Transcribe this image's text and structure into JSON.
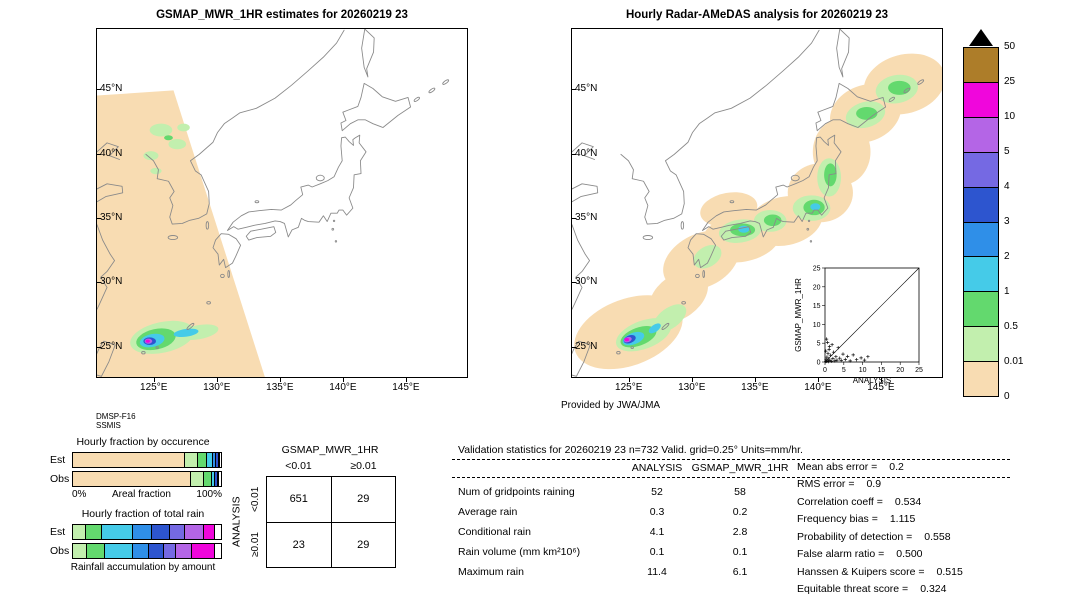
{
  "geo_labels": {
    "lat": [
      "45°N",
      "40°N",
      "35°N",
      "30°N",
      "25°N"
    ],
    "lat_vals": [
      45,
      40,
      35,
      30,
      25
    ],
    "lon": [
      "125°E",
      "130°E",
      "135°E",
      "140°E",
      "145°E"
    ],
    "lon_vals": [
      125,
      130,
      135,
      140,
      145
    ]
  },
  "colorbar": {
    "labels": [
      "50",
      "25",
      "10",
      "5",
      "4",
      "3",
      "2",
      "1",
      "0.5",
      "0.01",
      "0"
    ],
    "colors": [
      "#ad7d29",
      "#f006dc",
      "#b465e6",
      "#7569e3",
      "#2d55cf",
      "#2f8fe8",
      "#45cbe8",
      "#63d96e",
      "#c2efae",
      "#f8dcb2"
    ],
    "overflow_color": "#000000"
  },
  "chart_data": [
    {
      "type": "map",
      "title": "GSMAP_MWR_1HR estimates for 20260219 23",
      "source_lines": [
        "DMSP-F16",
        "SSMIS"
      ],
      "extent": {
        "lon": [
          120.5,
          150.0
        ],
        "lat": [
          22.5,
          49.7
        ]
      },
      "units": "mm/hr",
      "blobs": [
        {
          "poly": [
            [
              120.5,
              44.5
            ],
            [
              126.6,
              44.9
            ],
            [
              134.6,
              20.3
            ],
            [
              120.5,
              20.3
            ]
          ],
          "c": 9
        },
        {
          "e": [
            125.6,
            41.8,
            0.9,
            0.5,
            0
          ],
          "c": 8
        },
        {
          "e": [
            126.9,
            40.7,
            0.7,
            0.4,
            0
          ],
          "c": 8
        },
        {
          "e": [
            124.8,
            39.8,
            0.6,
            0.35,
            0
          ],
          "c": 8
        },
        {
          "e": [
            125.2,
            38.6,
            0.45,
            0.25,
            0
          ],
          "c": 8
        },
        {
          "e": [
            127.4,
            42.0,
            0.5,
            0.3,
            0
          ],
          "c": 8
        },
        {
          "e": [
            126.2,
            41.2,
            0.35,
            0.2,
            0
          ],
          "c": 7
        },
        {
          "e": [
            125.7,
            25.6,
            2.6,
            1.2,
            -12
          ],
          "c": 8
        },
        {
          "e": [
            128.6,
            26.0,
            1.6,
            0.55,
            -10
          ],
          "c": 8
        },
        {
          "e": [
            125.2,
            25.45,
            1.6,
            0.8,
            -12
          ],
          "c": 7
        },
        {
          "e": [
            124.9,
            25.35,
            1.0,
            0.5,
            -12
          ],
          "c": 6
        },
        {
          "e": [
            127.6,
            25.95,
            1.0,
            0.3,
            -8
          ],
          "c": 6
        },
        {
          "e": [
            124.7,
            25.3,
            0.5,
            0.3,
            0
          ],
          "c": 4
        },
        {
          "e": [
            124.6,
            25.3,
            0.3,
            0.2,
            0
          ],
          "c": 2
        },
        {
          "e": [
            124.55,
            25.3,
            0.17,
            0.12,
            0
          ],
          "c": 1
        }
      ]
    },
    {
      "type": "map",
      "title": "Hourly Radar-AMeDAS analysis for 20260219 23",
      "credit": "Provided by JWA/JMA",
      "extent": {
        "lon": [
          120.5,
          150.0
        ],
        "lat": [
          22.5,
          49.7
        ]
      },
      "units": "mm/hr",
      "blobs": [
        {
          "e": [
            125.0,
            26.0,
            4.5,
            2.6,
            -20
          ],
          "c": 9
        },
        {
          "e": [
            129.0,
            28.8,
            2.6,
            1.7,
            -35
          ],
          "c": 9
        },
        {
          "e": [
            130.8,
            31.6,
            3.2,
            2.1,
            -25
          ],
          "c": 9
        },
        {
          "e": [
            134.0,
            33.4,
            3.2,
            1.9,
            -10
          ],
          "c": 9
        },
        {
          "e": [
            137.5,
            34.7,
            3.0,
            1.9,
            -12
          ],
          "c": 9
        },
        {
          "e": [
            140.3,
            36.9,
            2.6,
            2.3,
            0
          ],
          "c": 9
        },
        {
          "e": [
            142.0,
            40.1,
            2.3,
            2.6,
            0
          ],
          "c": 9
        },
        {
          "e": [
            143.9,
            43.1,
            2.9,
            2.2,
            -20
          ],
          "c": 9
        },
        {
          "e": [
            147.0,
            45.4,
            3.3,
            2.3,
            -15
          ],
          "c": 9
        },
        {
          "e": [
            133.0,
            35.6,
            2.3,
            1.3,
            -10
          ],
          "c": 9
        },
        {
          "e": [
            126.2,
            25.8,
            2.3,
            1.1,
            -20
          ],
          "c": 8
        },
        {
          "e": [
            128.3,
            27.1,
            1.5,
            0.8,
            -35
          ],
          "c": 8
        },
        {
          "e": [
            131.3,
            31.9,
            1.2,
            0.8,
            -30
          ],
          "c": 8
        },
        {
          "e": [
            133.9,
            33.9,
            1.7,
            0.9,
            -8
          ],
          "c": 8
        },
        {
          "e": [
            136.3,
            34.7,
            1.3,
            0.85,
            0
          ],
          "c": 8
        },
        {
          "e": [
            139.6,
            35.7,
            1.5,
            1.0,
            0
          ],
          "c": 8
        },
        {
          "e": [
            141.0,
            38.1,
            0.95,
            1.5,
            0
          ],
          "c": 8
        },
        {
          "e": [
            143.9,
            43.0,
            1.6,
            1.0,
            -15
          ],
          "c": 8
        },
        {
          "e": [
            146.4,
            45.0,
            1.7,
            1.1,
            -10
          ],
          "c": 8
        },
        {
          "e": [
            125.8,
            25.65,
            1.5,
            0.7,
            -20
          ],
          "c": 7
        },
        {
          "e": [
            134.1,
            34.0,
            1.0,
            0.5,
            0
          ],
          "c": 7
        },
        {
          "e": [
            136.5,
            34.75,
            0.7,
            0.45,
            0
          ],
          "c": 7
        },
        {
          "e": [
            139.8,
            35.75,
            0.85,
            0.6,
            0
          ],
          "c": 7
        },
        {
          "e": [
            141.1,
            38.3,
            0.5,
            0.9,
            0
          ],
          "c": 7
        },
        {
          "e": [
            144.0,
            43.1,
            0.85,
            0.5,
            0
          ],
          "c": 7
        },
        {
          "e": [
            146.6,
            45.1,
            0.9,
            0.55,
            0
          ],
          "c": 7
        },
        {
          "e": [
            125.4,
            25.5,
            0.9,
            0.45,
            -20
          ],
          "c": 6
        },
        {
          "e": [
            127.1,
            26.3,
            0.55,
            0.28,
            -35
          ],
          "c": 6
        },
        {
          "e": [
            139.9,
            35.8,
            0.4,
            0.28,
            0
          ],
          "c": 6
        },
        {
          "e": [
            134.2,
            34.05,
            0.45,
            0.28,
            0
          ],
          "c": 6
        },
        {
          "e": [
            125.1,
            25.45,
            0.5,
            0.3,
            -20
          ],
          "c": 4
        },
        {
          "e": [
            124.95,
            25.42,
            0.32,
            0.2,
            -20
          ],
          "c": 2
        },
        {
          "e": [
            124.87,
            25.42,
            0.18,
            0.13,
            0
          ],
          "c": 1
        }
      ]
    },
    {
      "type": "scatter",
      "xlabel": "ANALYSIS",
      "ylabel": "GSMAP_MWR_1HR",
      "xlim": [
        0,
        25
      ],
      "ylim": [
        0,
        25
      ],
      "ticks": [
        0,
        5,
        10,
        15,
        20,
        25
      ],
      "diagonal": true,
      "points": [
        [
          0.2,
          0.1
        ],
        [
          0.3,
          0.6
        ],
        [
          0.4,
          0.2
        ],
        [
          0.5,
          1.3
        ],
        [
          0.6,
          0.3
        ],
        [
          0.8,
          2.2
        ],
        [
          0.9,
          0.1
        ],
        [
          1.0,
          0.8
        ],
        [
          1.1,
          3.3
        ],
        [
          1.3,
          0.4
        ],
        [
          1.5,
          1.8
        ],
        [
          1.7,
          0.2
        ],
        [
          1.9,
          4.6
        ],
        [
          2.1,
          0.9
        ],
        [
          2.3,
          2.6
        ],
        [
          2.6,
          0.3
        ],
        [
          2.9,
          1.4
        ],
        [
          3.2,
          0.5
        ],
        [
          3.5,
          3.8
        ],
        [
          3.9,
          1.0
        ],
        [
          4.3,
          0.4
        ],
        [
          4.8,
          2.1
        ],
        [
          5.4,
          0.7
        ],
        [
          6.0,
          1.5
        ],
        [
          6.7,
          0.3
        ],
        [
          7.5,
          1.9
        ],
        [
          8.4,
          0.6
        ],
        [
          9.6,
          1.1
        ],
        [
          10.5,
          0.5
        ],
        [
          11.4,
          1.4
        ],
        [
          0.4,
          6.1
        ],
        [
          0.7,
          5.2
        ],
        [
          1.2,
          4.1
        ],
        [
          0.2,
          2.9
        ]
      ]
    },
    {
      "type": "bar",
      "subtype": "stacked-horizontal",
      "title": "Hourly fraction by occurence",
      "axis": {
        "left": "0%",
        "center": "Areal fraction",
        "right": "100%"
      },
      "rows": [
        {
          "label": "Est",
          "segments": [
            [
              9,
              75
            ],
            [
              8,
              9
            ],
            [
              7,
              6
            ],
            [
              6,
              4
            ],
            [
              5,
              2
            ],
            [
              4,
              2
            ],
            [
              2,
              1
            ],
            [
              "#ffffff",
              1
            ]
          ]
        },
        {
          "label": "Obs",
          "segments": [
            [
              9,
              79
            ],
            [
              8,
              9
            ],
            [
              7,
              5
            ],
            [
              6,
              2
            ],
            [
              4,
              2
            ],
            [
              1,
              1
            ],
            [
              "#ffffff",
              2
            ]
          ]
        }
      ]
    },
    {
      "type": "bar",
      "subtype": "stacked-horizontal",
      "title": "Hourly fraction of total rain",
      "caption": "Rainfall accumulation by amount",
      "rows": [
        {
          "label": "Est",
          "segments": [
            [
              8,
              8
            ],
            [
              7,
              11
            ],
            [
              6,
              21
            ],
            [
              5,
              13
            ],
            [
              4,
              12
            ],
            [
              3,
              10
            ],
            [
              2,
              13
            ],
            [
              1,
              7
            ],
            [
              "#ffffff",
              5
            ]
          ]
        },
        {
          "label": "Obs",
          "segments": [
            [
              8,
              9
            ],
            [
              7,
              12
            ],
            [
              6,
              19
            ],
            [
              5,
              11
            ],
            [
              4,
              10
            ],
            [
              3,
              8
            ],
            [
              2,
              11
            ],
            [
              1,
              15
            ],
            [
              "#ffffff",
              5
            ]
          ]
        }
      ]
    },
    {
      "type": "table",
      "top_label": "GSMAP_MWR_1HR",
      "side_label": "ANALYSIS",
      "col_headers": [
        "<0.01",
        "≥0.01"
      ],
      "row_headers": [
        "<0.01",
        "≥0.01"
      ],
      "cells": [
        [
          "651",
          "29"
        ],
        [
          "23",
          "29"
        ]
      ]
    },
    {
      "type": "table",
      "title": "Validation statistics for 20260219 23  n=732 Valid. grid=0.25° Units=mm/hr.",
      "col_headers": [
        "ANALYSIS",
        "GSMAP_MWR_1HR"
      ],
      "rows": [
        {
          "label": "Num of gridpoints raining",
          "a": "52",
          "g": "58"
        },
        {
          "label": "Average rain",
          "a": "0.3",
          "g": "0.2"
        },
        {
          "label": "Conditional rain",
          "a": "4.1",
          "g": "2.8"
        },
        {
          "label": "Rain volume (mm km²10⁶)",
          "a": "0.1",
          "g": "0.1"
        },
        {
          "label": "Maximum rain",
          "a": "11.4",
          "g": "6.1"
        }
      ],
      "stats": [
        {
          "label": "Mean abs error =",
          "value": "0.2"
        },
        {
          "label": "RMS error =",
          "value": "0.9"
        },
        {
          "label": "Correlation coeff =",
          "value": "0.534"
        },
        {
          "label": "Frequency bias =",
          "value": "1.115"
        },
        {
          "label": "Probability of detection =",
          "value": "0.558"
        },
        {
          "label": "False alarm ratio =",
          "value": "0.500"
        },
        {
          "label": "Hanssen & Kuipers score =",
          "value": "0.515"
        },
        {
          "label": "Equitable threat score =",
          "value": "0.324"
        }
      ]
    }
  ]
}
